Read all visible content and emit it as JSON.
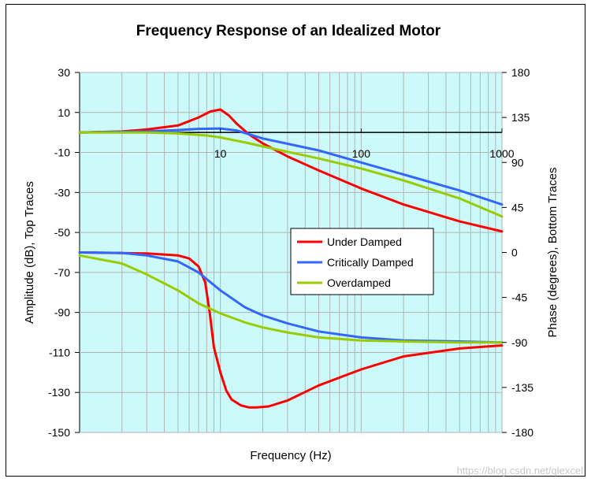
{
  "chart_data": {
    "type": "line",
    "title": "Frequency Response of an Idealized Motor",
    "xlabel": "Frequency (Hz)",
    "ylabel_left": "Amplitude (dB), Top Traces",
    "ylabel_right": "Phase (degrees), Bottom Traces",
    "x_scale": "log",
    "xlim": [
      1,
      1000
    ],
    "x_tick_labels": [
      "10",
      "100",
      "1000"
    ],
    "x_tick_values": [
      10,
      100,
      1000
    ],
    "ylim_left": [
      -150,
      30
    ],
    "left_tick_values": [
      30,
      10,
      -10,
      -30,
      -50,
      -70,
      -90,
      -110,
      -130,
      -150
    ],
    "ylim_right": [
      -180,
      180
    ],
    "right_tick_values": [
      180,
      135,
      90,
      45,
      0,
      -45,
      -90,
      -135,
      -180
    ],
    "grid": true,
    "reference_line": {
      "axis": "left",
      "value": 0
    },
    "legend": {
      "placement": "center-right",
      "entries": [
        "Under Damped",
        "Critically Damped",
        "Overdamped"
      ]
    },
    "colors": {
      "plot_background": "#ccfafa",
      "grid": "#b4b4b4",
      "under_damped": "#ff0000",
      "critically_damped": "#3366ff",
      "overdamped": "#99cc00"
    },
    "series": [
      {
        "name": "Under Damped",
        "axis": "left",
        "kind": "amplitude",
        "x": [
          1,
          2,
          3,
          5,
          7,
          8.5,
          10,
          11.5,
          13,
          16,
          20,
          30,
          50,
          100,
          200,
          500,
          1000
        ],
        "y": [
          0,
          0.5,
          1.5,
          3.5,
          7.5,
          10.5,
          11.5,
          8.5,
          4.5,
          -1,
          -5.5,
          -12,
          -19,
          -28,
          -36,
          -44.5,
          -49.5
        ]
      },
      {
        "name": "Critically Damped",
        "axis": "left",
        "kind": "amplitude",
        "x": [
          1,
          3,
          5,
          7,
          10,
          13,
          20,
          50,
          100,
          200,
          500,
          1000
        ],
        "y": [
          0,
          0.5,
          1.2,
          1.8,
          2,
          1,
          -3,
          -9,
          -15,
          -21,
          -29,
          -36
        ]
      },
      {
        "name": "Overdamped",
        "axis": "left",
        "kind": "amplitude",
        "x": [
          1,
          3,
          5,
          8,
          10,
          15,
          20,
          50,
          100,
          200,
          500,
          1000
        ],
        "y": [
          0,
          0,
          -0.5,
          -1.5,
          -2.5,
          -5,
          -7,
          -13,
          -18,
          -24,
          -33,
          -42
        ]
      },
      {
        "name": "Under Damped",
        "axis": "right",
        "kind": "phase",
        "x": [
          1,
          3,
          5,
          6,
          7,
          7.8,
          8.4,
          9,
          10,
          11,
          12,
          14,
          16,
          18,
          22,
          30,
          50,
          100,
          200,
          500,
          1000
        ],
        "y": [
          0,
          -1,
          -3,
          -6,
          -14,
          -30,
          -60,
          -95,
          -120,
          -138,
          -147,
          -153,
          -155,
          -155,
          -154,
          -148,
          -133,
          -117,
          -104,
          -96,
          -93
        ]
      },
      {
        "name": "Critically Damped",
        "axis": "right",
        "kind": "phase",
        "x": [
          1,
          2,
          3,
          5,
          7,
          10,
          15,
          20,
          30,
          50,
          100,
          200,
          500,
          1000
        ],
        "y": [
          0,
          -0.5,
          -3,
          -9,
          -20,
          -38,
          -55,
          -63,
          -71,
          -79,
          -85,
          -88,
          -89,
          -90
        ]
      },
      {
        "name": "Overdamped",
        "axis": "right",
        "kind": "phase",
        "x": [
          1,
          2,
          3,
          5,
          7,
          10,
          15,
          20,
          30,
          50,
          100,
          200,
          500,
          1000
        ],
        "y": [
          -3,
          -11,
          -22,
          -38,
          -51,
          -61,
          -70,
          -75,
          -80,
          -85,
          -88,
          -89,
          -90,
          -90
        ]
      }
    ]
  },
  "watermark": "https://blog.csdn.net/qlexcel"
}
